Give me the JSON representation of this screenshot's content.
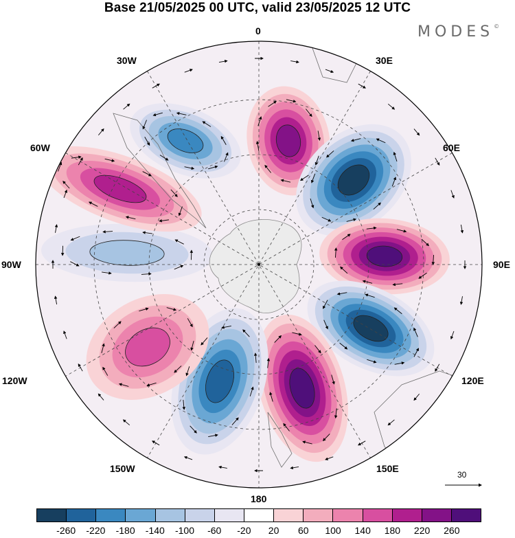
{
  "title": "Base 21/05/2025 00 UTC, valid 23/05/2025 12 UTC",
  "brand": "MODES",
  "brand_mark": "©",
  "longitude_labels": [
    "0",
    "30E",
    "60E",
    "90E",
    "120E",
    "150E",
    "180",
    "150W",
    "120W",
    "90W",
    "60W",
    "30W"
  ],
  "colorbar": {
    "colors": [
      "#173f5f",
      "#20639b",
      "#3a88c0",
      "#6aa7d4",
      "#a7c4e2",
      "#c9d3ea",
      "#e8e6f2",
      "#ffffff",
      "#f9d3d6",
      "#f3adbd",
      "#ec83ad",
      "#d84fa0",
      "#b01f8e",
      "#831287",
      "#4f0f7a"
    ],
    "ticks": [
      "-260",
      "-220",
      "-180",
      "-140",
      "-100",
      "-60",
      "-20",
      "20",
      "60",
      "100",
      "140",
      "180",
      "220",
      "260"
    ]
  },
  "reference_vector": {
    "label": "30"
  },
  "anomaly_lobes": [
    {
      "name": "lobe-positive-0",
      "level": 220
    },
    {
      "name": "lobe-negative-45e",
      "level": -260
    },
    {
      "name": "lobe-positive-90e",
      "level": 260
    },
    {
      "name": "lobe-negative-125e",
      "level": -260
    },
    {
      "name": "lobe-positive-165e",
      "level": 260
    },
    {
      "name": "lobe-negative-150w",
      "level": -220
    },
    {
      "name": "lobe-positive-120w",
      "level": 140
    },
    {
      "name": "lobe-negative-90w",
      "level": -100
    },
    {
      "name": "lobe-positive-60w",
      "level": 180
    },
    {
      "name": "lobe-negative-30w",
      "level": -180
    }
  ]
}
